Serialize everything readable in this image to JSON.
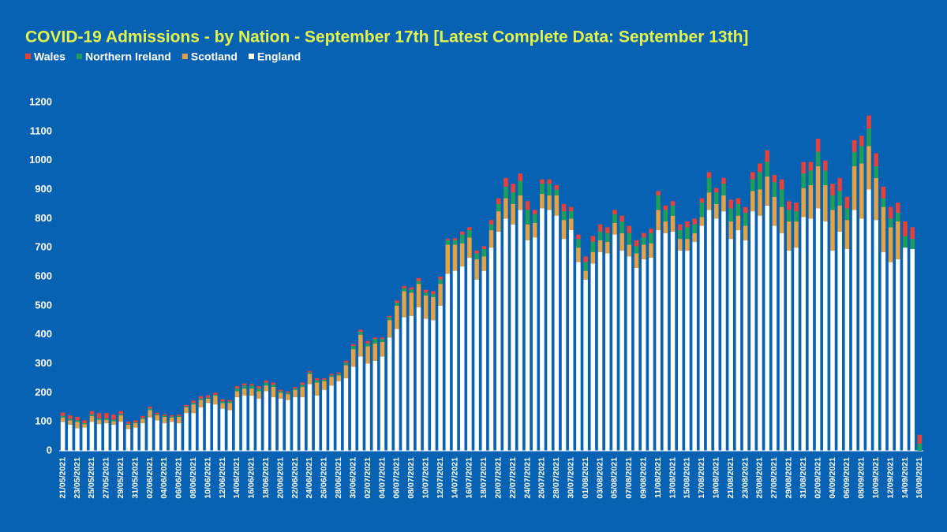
{
  "chart_data": {
    "type": "stacked_bar",
    "title": "COVID-19 Admissions - by Nation - September 17th [Latest Complete Data: September 13th]",
    "categories": [
      "21/05/2021",
      null,
      "23/05/2021",
      null,
      "25/05/2021",
      null,
      "27/05/2021",
      null,
      "29/05/2021",
      null,
      "31/05/2021",
      null,
      "02/06/2021",
      null,
      "04/06/2021",
      null,
      "06/06/2021",
      null,
      "08/06/2021",
      null,
      "10/06/2021",
      null,
      "12/06/2021",
      null,
      "14/06/2021",
      null,
      "16/06/2021",
      null,
      "18/06/2021",
      null,
      "20/06/2021",
      null,
      "22/06/2021",
      null,
      "24/06/2021",
      null,
      "26/06/2021",
      null,
      "28/06/2021",
      null,
      "30/06/2021",
      null,
      "02/07/2021",
      null,
      "04/07/2021",
      null,
      "06/07/2021",
      null,
      "08/07/2021",
      null,
      "10/07/2021",
      null,
      "12/07/2021",
      null,
      "14/07/2021",
      null,
      "16/07/2021",
      null,
      "18/07/2021",
      null,
      "20/07/2021",
      null,
      "22/07/2021",
      null,
      "24/07/2021",
      null,
      "26/07/2021",
      null,
      "28/07/2021",
      null,
      "30/07/2021",
      null,
      "01/08/2021",
      null,
      "03/08/2021",
      null,
      "05/08/2021",
      null,
      "07/08/2021",
      null,
      "09/08/2021",
      null,
      "11/08/2021",
      null,
      "13/08/2021",
      null,
      "15/08/2021",
      null,
      "17/08/2021",
      null,
      "19/08/2021",
      null,
      "21/08/2021",
      null,
      "23/08/2021",
      null,
      "25/08/2021",
      null,
      "27/08/2021",
      null,
      "29/08/2021",
      null,
      "31/08/2021",
      null,
      "02/09/2021",
      null,
      "04/09/2021",
      null,
      "06/09/2021",
      null,
      "08/09/2021",
      null,
      "10/09/2021",
      null,
      "12/09/2021",
      null,
      "14/09/2021",
      null,
      "16/09/2021"
    ],
    "series": [
      {
        "name": "Wales",
        "color": "#e8413a",
        "values": [
          12,
          12,
          12,
          10,
          12,
          18,
          18,
          18,
          10,
          7,
          7,
          7,
          7,
          5,
          5,
          5,
          5,
          5,
          8,
          8,
          8,
          7,
          8,
          5,
          8,
          7,
          5,
          8,
          7,
          7,
          5,
          5,
          5,
          7,
          5,
          7,
          5,
          5,
          5,
          7,
          7,
          7,
          8,
          5,
          5,
          5,
          8,
          8,
          8,
          10,
          10,
          10,
          10,
          5,
          7,
          10,
          10,
          10,
          10,
          15,
          20,
          30,
          30,
          25,
          30,
          15,
          15,
          15,
          15,
          25,
          15,
          15,
          20,
          20,
          25,
          20,
          15,
          20,
          25,
          20,
          15,
          15,
          15,
          15,
          15,
          20,
          20,
          20,
          15,
          20,
          15,
          20,
          30,
          20,
          20,
          25,
          30,
          40,
          25,
          35,
          30,
          30,
          40,
          30,
          45,
          35,
          40,
          45,
          40,
          40,
          35,
          45,
          45,
          40,
          40,
          35,
          50,
          40,
          30
        ]
      },
      {
        "name": "Northern Ireland",
        "color": "#1f9e5a",
        "values": [
          5,
          5,
          5,
          3,
          5,
          5,
          5,
          5,
          5,
          3,
          3,
          3,
          5,
          3,
          3,
          3,
          3,
          3,
          5,
          5,
          3,
          3,
          5,
          5,
          10,
          10,
          10,
          10,
          10,
          8,
          5,
          5,
          5,
          8,
          5,
          8,
          5,
          5,
          5,
          8,
          10,
          10,
          10,
          15,
          10,
          10,
          10,
          10,
          10,
          10,
          10,
          10,
          15,
          15,
          15,
          30,
          25,
          20,
          25,
          20,
          25,
          40,
          40,
          50,
          50,
          30,
          35,
          40,
          20,
          30,
          25,
          30,
          30,
          35,
          30,
          30,
          30,
          40,
          40,
          25,
          25,
          35,
          50,
          40,
          35,
          30,
          40,
          30,
          50,
          50,
          40,
          40,
          45,
          40,
          45,
          40,
          60,
          50,
          50,
          60,
          40,
          35,
          50,
          50,
          50,
          50,
          50,
          50,
          40,
          50,
          60,
          60,
          40,
          30,
          30,
          30,
          40,
          35,
          25
        ]
      },
      {
        "name": "Scotland",
        "color": "#e3a245",
        "values": [
          15,
          15,
          22,
          12,
          20,
          15,
          12,
          12,
          22,
          15,
          15,
          15,
          25,
          18,
          22,
          15,
          22,
          20,
          30,
          25,
          15,
          30,
          20,
          25,
          20,
          25,
          25,
          25,
          20,
          35,
          20,
          20,
          25,
          35,
          35,
          45,
          30,
          30,
          20,
          45,
          60,
          75,
          60,
          60,
          50,
          60,
          80,
          90,
          80,
          80,
          80,
          80,
          75,
          100,
          90,
          80,
          70,
          70,
          50,
          60,
          70,
          70,
          70,
          50,
          55,
          50,
          50,
          50,
          70,
          65,
          40,
          50,
          30,
          40,
          40,
          40,
          40,
          60,
          40,
          50,
          50,
          50,
          70,
          40,
          55,
          40,
          40,
          30,
          30,
          60,
          50,
          55,
          60,
          50,
          50,
          70,
          90,
          100,
          100,
          90,
          100,
          90,
          100,
          115,
          145,
          125,
          140,
          90,
          100,
          150,
          190,
          150,
          145,
          155,
          120,
          130,
          0,
          0,
          0
        ]
      },
      {
        "name": "England",
        "color": "#ffffff",
        "values": [
          100,
          90,
          78,
          80,
          100,
          92,
          95,
          90,
          100,
          75,
          80,
          95,
          115,
          105,
          95,
          100,
          95,
          130,
          130,
          150,
          165,
          160,
          145,
          140,
          185,
          190,
          190,
          180,
          205,
          185,
          180,
          175,
          185,
          185,
          230,
          190,
          210,
          225,
          240,
          250,
          290,
          325,
          300,
          310,
          325,
          390,
          420,
          460,
          465,
          495,
          455,
          450,
          500,
          610,
          620,
          635,
          665,
          590,
          620,
          700,
          755,
          800,
          780,
          830,
          725,
          735,
          835,
          830,
          810,
          730,
          760,
          650,
          590,
          645,
          685,
          680,
          745,
          690,
          670,
          630,
          660,
          665,
          760,
          750,
          755,
          690,
          690,
          720,
          775,
          830,
          800,
          825,
          730,
          760,
          725,
          825,
          810,
          845,
          775,
          750,
          690,
          700,
          805,
          800,
          835,
          790,
          690,
          755,
          695,
          830,
          800,
          900,
          795,
          685,
          650,
          660,
          700,
          695,
          0
        ]
      }
    ],
    "ylim": [
      0,
      1200
    ],
    "yticks": [
      0,
      100,
      200,
      300,
      400,
      500,
      600,
      700,
      800,
      900,
      1000,
      1100,
      1200
    ]
  }
}
